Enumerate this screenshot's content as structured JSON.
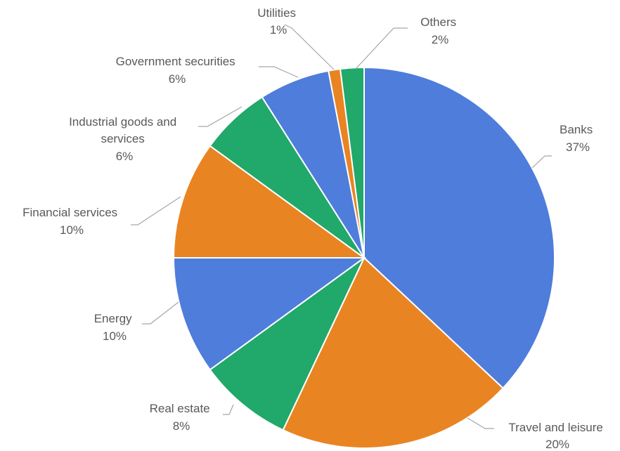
{
  "chart_data": {
    "type": "pie",
    "title": "",
    "slices": [
      {
        "label": "Banks",
        "pct_text": "37%",
        "value": 37,
        "color": "#4e7ddb"
      },
      {
        "label": "Travel and leisure",
        "pct_text": "20%",
        "value": 20,
        "color": "#e98422"
      },
      {
        "label": "Real estate",
        "pct_text": "8%",
        "value": 8,
        "color": "#21a86b"
      },
      {
        "label": "Energy",
        "pct_text": "10%",
        "value": 10,
        "color": "#4e7ddb"
      },
      {
        "label": "Financial services",
        "pct_text": "10%",
        "value": 10,
        "color": "#e98422"
      },
      {
        "label": "Industrial goods and services",
        "pct_text": "6%",
        "value": 6,
        "color": "#21a86b"
      },
      {
        "label": "Government securities",
        "pct_text": "6%",
        "value": 6,
        "color": "#4e7ddb"
      },
      {
        "label": "Utilities",
        "pct_text": "1%",
        "value": 1,
        "color": "#e98422"
      },
      {
        "label": "Others",
        "pct_text": "2%",
        "value": 2,
        "color": "#21a86b"
      }
    ]
  }
}
